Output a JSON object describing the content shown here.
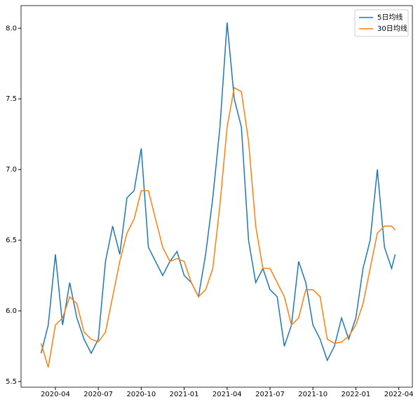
{
  "chart_data": {
    "type": "line",
    "x": [
      2.0,
      2.5,
      3.0,
      3.5,
      4.0,
      4.5,
      5.0,
      5.5,
      6.0,
      6.5,
      7.0,
      7.5,
      8.0,
      8.5,
      9.0,
      9.5,
      10.0,
      10.5,
      11.0,
      11.5,
      12.0,
      12.5,
      13.0,
      13.5,
      14.0,
      14.5,
      15.0,
      15.5,
      16.0,
      16.5,
      17.0,
      17.5,
      18.0,
      18.5,
      19.0,
      19.5,
      20.0,
      20.5,
      21.0,
      21.5,
      22.0,
      22.5,
      23.0,
      23.5,
      24.0,
      24.5,
      25.0,
      25.5,
      26.0,
      26.5,
      26.75
    ],
    "series": [
      {
        "name": "5日均线",
        "color": "#1f77b4",
        "values": [
          5.7,
          5.9,
          6.4,
          5.9,
          6.2,
          5.95,
          5.8,
          5.7,
          5.8,
          6.35,
          6.6,
          6.4,
          6.8,
          6.85,
          7.15,
          6.45,
          6.35,
          6.25,
          6.35,
          6.42,
          6.25,
          6.2,
          6.1,
          6.4,
          6.8,
          7.3,
          8.04,
          7.5,
          7.3,
          6.5,
          6.2,
          6.3,
          6.15,
          6.1,
          5.75,
          5.9,
          6.35,
          6.2,
          5.9,
          5.8,
          5.65,
          5.75,
          5.95,
          5.8,
          5.95,
          6.3,
          6.5,
          7.0,
          6.45,
          6.3,
          6.4
        ]
      },
      {
        "name": "30日均线",
        "color": "#ff7f0e",
        "values": [
          5.77,
          5.6,
          5.9,
          5.95,
          6.1,
          6.05,
          5.85,
          5.8,
          5.78,
          5.85,
          6.1,
          6.35,
          6.55,
          6.65,
          6.85,
          6.85,
          6.65,
          6.45,
          6.35,
          6.37,
          6.35,
          6.2,
          6.1,
          6.15,
          6.3,
          6.75,
          7.3,
          7.58,
          7.55,
          7.2,
          6.6,
          6.3,
          6.3,
          6.2,
          6.1,
          5.9,
          5.95,
          6.15,
          6.15,
          6.1,
          5.8,
          5.77,
          5.78,
          5.82,
          5.9,
          6.05,
          6.3,
          6.55,
          6.6,
          6.6,
          6.57
        ]
      }
    ],
    "xlim": [
      0.6,
      27.95
    ],
    "xticks": [
      {
        "value": 3,
        "label": "2020-04"
      },
      {
        "value": 6,
        "label": "2020-07"
      },
      {
        "value": 9,
        "label": "2020-10"
      },
      {
        "value": 12,
        "label": "2021-01"
      },
      {
        "value": 15,
        "label": "2021-04"
      },
      {
        "value": 18,
        "label": "2021-07"
      },
      {
        "value": 21,
        "label": "2021-10"
      },
      {
        "value": 24,
        "label": "2022-01"
      },
      {
        "value": 27,
        "label": "2022-04"
      }
    ],
    "ylim": [
      5.46,
      8.16
    ],
    "yticks": [
      5.5,
      {
        "value": 6.0,
        "label": "6.0"
      },
      6.5,
      {
        "value": 7.0,
        "label": "7.0"
      },
      7.5,
      {
        "value": 8.0,
        "label": "8.0"
      }
    ],
    "legend": "upper right"
  }
}
